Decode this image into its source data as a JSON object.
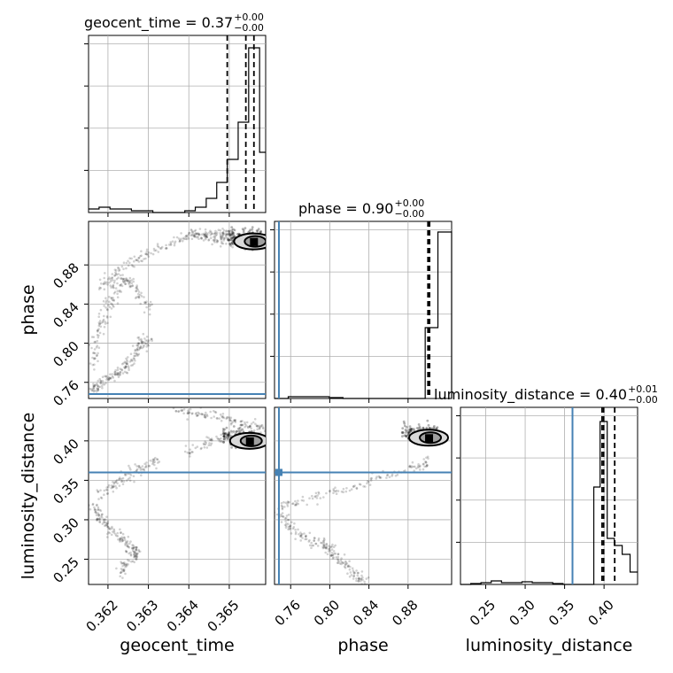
{
  "chart_data": {
    "type": "corner",
    "params": [
      "geocent_time",
      "phase",
      "luminosity_distance"
    ],
    "axis_labels": [
      "geocent_time",
      "phase",
      "luminosity_distance"
    ],
    "ranges": {
      "geocent_time": [
        0.36152,
        0.3659
      ],
      "phase": [
        0.7435,
        0.9245
      ],
      "luminosity_distance": [
        0.218,
        0.4425
      ]
    },
    "ticks": {
      "geocent_time": [
        0.362,
        0.363,
        0.364,
        0.365
      ],
      "phase": [
        0.76,
        0.8,
        0.84,
        0.88
      ],
      "luminosity_distance": [
        0.25,
        0.3,
        0.35,
        0.4
      ]
    },
    "tick_labels": {
      "geocent_time": [
        "0.362",
        "0.363",
        "0.364",
        "0.365"
      ],
      "phase": [
        "0.76",
        "0.80",
        "0.84",
        "0.88"
      ],
      "luminosity_distance": [
        "0.25",
        "0.30",
        "0.35",
        "0.40"
      ]
    },
    "truths": {
      "geocent_time": null,
      "phase": 0.748,
      "luminosity_distance": 0.36
    },
    "truth_color": "#4682b4",
    "titles": [
      {
        "param": "geocent_time",
        "text": "geocent_time = 0.37",
        "plus": "+0.00",
        "minus": "−0.00"
      },
      {
        "param": "phase",
        "text": "phase = 0.90",
        "plus": "+0.00",
        "minus": "−0.00"
      },
      {
        "param": "luminosity_distance",
        "text": "luminosity_distance = 0.40",
        "plus": "+0.01",
        "minus": "−0.00"
      }
    ],
    "quantiles": {
      "geocent_time": [
        0.36495,
        0.36541,
        0.36561
      ],
      "phase": [
        0.9005,
        0.9012,
        0.9018
      ],
      "luminosity_distance": [
        0.3975,
        0.3995,
        0.4135
      ]
    },
    "histograms": {
      "geocent_time": {
        "edges": [
          0.36152,
          0.36178,
          0.36205,
          0.36231,
          0.36258,
          0.36284,
          0.36311,
          0.36337,
          0.36363,
          0.3639,
          0.36416,
          0.36443,
          0.36469,
          0.36495,
          0.36522,
          0.36548,
          0.36575,
          0.3659
        ],
        "counts": [
          0.02,
          0.03,
          0.02,
          0.02,
          0.01,
          0.01,
          0.0,
          0.0,
          0.0,
          0.01,
          0.03,
          0.08,
          0.17,
          0.3,
          0.51,
          0.93,
          0.34
        ]
      },
      "phase": {
        "edges": [
          0.7435,
          0.7575,
          0.7715,
          0.7855,
          0.7995,
          0.8135,
          0.8275,
          0.8415,
          0.8555,
          0.8695,
          0.8835,
          0.8975,
          0.9105,
          0.9245
        ],
        "counts": [
          0.0,
          0.01,
          0.01,
          0.01,
          0.005,
          0.0,
          0.0,
          0.0,
          0.0,
          0.0,
          0.0,
          0.4,
          0.94,
          0.0
        ]
      },
      "luminosity_distance": {
        "edges": [
          0.218,
          0.231,
          0.244,
          0.257,
          0.27,
          0.283,
          0.296,
          0.309,
          0.322,
          0.335,
          0.348,
          0.361,
          0.374,
          0.387,
          0.395,
          0.404,
          0.413,
          0.423,
          0.433,
          0.4425
        ],
        "counts": [
          0.0,
          0.005,
          0.01,
          0.02,
          0.01,
          0.01,
          0.015,
          0.01,
          0.01,
          0.005,
          0.0,
          0.0,
          0.0,
          0.55,
          0.92,
          0.26,
          0.22,
          0.17,
          0.07
        ]
      }
    },
    "scatter": {
      "phase_vs_geocent_time": {
        "tracks": [
          {
            "x": [
              0.3616,
              0.3617,
              0.3618,
              0.36195,
              0.3621,
              0.36225,
              0.3624,
              0.3625,
              0.36262,
              0.36272,
              0.36282,
              0.36295,
              0.363
            ],
            "y": [
              0.7505,
              0.754,
              0.758,
              0.762,
              0.766,
              0.77,
              0.7745,
              0.779,
              0.785,
              0.792,
              0.799,
              0.804,
              0.8
            ]
          },
          {
            "x": [
              0.3616,
              0.3617,
              0.36175,
              0.36185,
              0.36195,
              0.36205,
              0.36215,
              0.36225,
              0.3624,
              0.36255,
              0.3627,
              0.36285,
              0.363
            ],
            "y": [
              0.775,
              0.79,
              0.805,
              0.82,
              0.83,
              0.84,
              0.85,
              0.86,
              0.865,
              0.862,
              0.855,
              0.845,
              0.835
            ]
          },
          {
            "x": [
              0.3618,
              0.362,
              0.3622,
              0.3624,
              0.3627,
              0.363,
              0.3633,
              0.3636,
              0.3639,
              0.3642,
              0.3645,
              0.3648,
              0.365
            ],
            "y": [
              0.858,
              0.862,
              0.87,
              0.878,
              0.885,
              0.892,
              0.898,
              0.904,
              0.908,
              0.911,
              0.913,
              0.912,
              0.91
            ]
          },
          {
            "x": [
              0.364,
              0.3642,
              0.3644,
              0.3646,
              0.3648,
              0.365,
              0.3652,
              0.3654,
              0.3656,
              0.3658
            ],
            "y": [
              0.912,
              0.91,
              0.908,
              0.906,
              0.905,
              0.904,
              0.903,
              0.902,
              0.901,
              0.9
            ]
          }
        ],
        "contour_center": {
          "x": 0.3656,
          "y": 0.904
        }
      },
      "luminosity_distance_vs_geocent_time": {
        "tracks": [
          {
            "x": [
              0.3616,
              0.3617,
              0.3618,
              0.3619,
              0.36205,
              0.3622,
              0.36235,
              0.3625,
              0.36262,
              0.3627,
              0.36265,
              0.3625,
              0.36235,
              0.3623
            ],
            "y": [
              0.32,
              0.312,
              0.304,
              0.296,
              0.288,
              0.282,
              0.276,
              0.27,
              0.264,
              0.26,
              0.254,
              0.248,
              0.24,
              0.23
            ]
          },
          {
            "x": [
              0.3618,
              0.362,
              0.3622,
              0.3624,
              0.3626,
              0.3628,
              0.363,
              0.3632
            ],
            "y": [
              0.33,
              0.338,
              0.346,
              0.354,
              0.36,
              0.365,
              0.37,
              0.375
            ]
          },
          {
            "x": [
              0.3637,
              0.3639,
              0.3642,
              0.3645,
              0.3648,
              0.3651,
              0.3654,
              0.3657,
              0.3659
            ],
            "y": [
              0.438,
              0.437,
              0.435,
              0.433,
              0.43,
              0.426,
              0.422,
              0.418,
              0.415
            ]
          },
          {
            "x": [
              0.364,
              0.3643,
              0.3646,
              0.3649,
              0.3652,
              0.3655,
              0.3658
            ],
            "y": [
              0.388,
              0.394,
              0.4,
              0.404,
              0.406,
              0.407,
              0.406
            ]
          }
        ],
        "contour_center": {
          "x": 0.3655,
          "y": 0.4
        }
      },
      "luminosity_distance_vs_phase": {
        "tracks": [
          {
            "x": [
              0.75,
              0.755,
              0.76,
              0.77,
              0.78,
              0.79,
              0.795,
              0.8,
              0.805,
              0.81,
              0.818,
              0.825,
              0.83,
              0.838
            ],
            "y": [
              0.31,
              0.3,
              0.29,
              0.28,
              0.275,
              0.27,
              0.268,
              0.262,
              0.255,
              0.248,
              0.24,
              0.232,
              0.225,
              0.22
            ]
          },
          {
            "x": [
              0.75,
              0.76,
              0.78,
              0.8,
              0.82,
              0.84,
              0.86,
              0.88,
              0.895,
              0.9
            ],
            "y": [
              0.315,
              0.32,
              0.326,
              0.332,
              0.34,
              0.348,
              0.356,
              0.364,
              0.37,
              0.375
            ]
          }
        ],
        "contour_center": {
          "x": 0.901,
          "y": 0.404
        }
      }
    },
    "grid": true
  }
}
